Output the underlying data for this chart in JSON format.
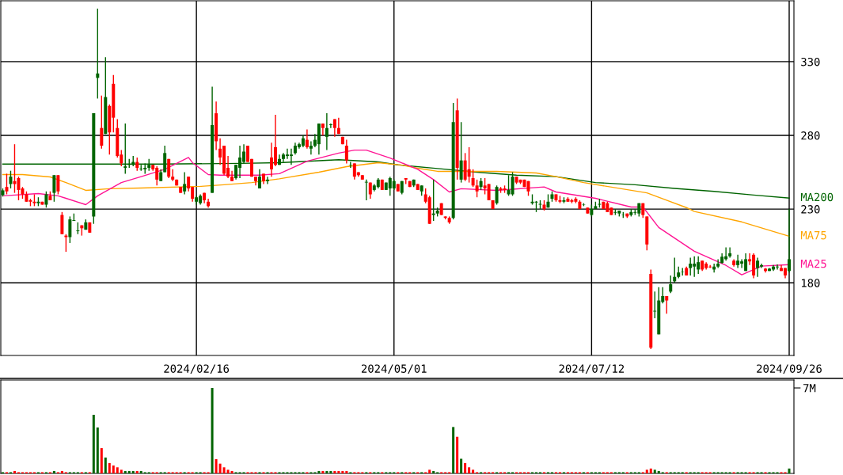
{
  "chart_data": [
    {
      "type": "candlestick",
      "categories": [
        null,
        null,
        null,
        null,
        null,
        null,
        null,
        null,
        null,
        null,
        null,
        null,
        null,
        null,
        null,
        null,
        null,
        null,
        null,
        null,
        null,
        null,
        null,
        null,
        null,
        null,
        null,
        null,
        null,
        null,
        null,
        null,
        null,
        null,
        null,
        null,
        null,
        null,
        null,
        null,
        null,
        null,
        null,
        null,
        null,
        null,
        null,
        null,
        null,
        "2024/02/16",
        null,
        null,
        null,
        null,
        null,
        null,
        null,
        null,
        null,
        null,
        null,
        null,
        null,
        null,
        null,
        null,
        null,
        null,
        null,
        null,
        null,
        null,
        null,
        null,
        null,
        null,
        null,
        null,
        null,
        null,
        null,
        null,
        null,
        null,
        null,
        null,
        null,
        null,
        null,
        null,
        null,
        null,
        null,
        null,
        null,
        null,
        null,
        null,
        null,
        "2024/05/01",
        null,
        null,
        null,
        null,
        null,
        null,
        null,
        null,
        null,
        null,
        null,
        null,
        null,
        null,
        null,
        null,
        null,
        null,
        null,
        null,
        null,
        null,
        null,
        null,
        null,
        null,
        null,
        null,
        null,
        null,
        null,
        null,
        null,
        null,
        null,
        null,
        null,
        null,
        null,
        null,
        null,
        null,
        null,
        null,
        null,
        null,
        null,
        null,
        null,
        "2024/07/12",
        null,
        null,
        null,
        null,
        null,
        null,
        null,
        null,
        null,
        null,
        null,
        null,
        null,
        null,
        null,
        null,
        null,
        null,
        null,
        null,
        null,
        null,
        null,
        null,
        null,
        null,
        null,
        null,
        null,
        null,
        null,
        null,
        null,
        null,
        null,
        null,
        null,
        null,
        null,
        null,
        null,
        null,
        null,
        null,
        null,
        null,
        null,
        null,
        null,
        "2024/09/26"
      ],
      "ohlc": [
        [
          239.5,
          244,
          238.5,
          242.7
        ],
        [
          245,
          254,
          240,
          242
        ],
        [
          247,
          256,
          244,
          252
        ],
        [
          249,
          274,
          241,
          247
        ],
        [
          251,
          252,
          236,
          243
        ],
        [
          244,
          245,
          237,
          240
        ],
        [
          240,
          242,
          235,
          235
        ],
        [
          236,
          237,
          232,
          235
        ],
        [
          235,
          240,
          232,
          234
        ],
        [
          234,
          238,
          232,
          235
        ],
        [
          235,
          235,
          233,
          233
        ],
        [
          233,
          242,
          231,
          240
        ],
        [
          239,
          242,
          236,
          236
        ],
        [
          241,
          253,
          235,
          253
        ],
        [
          253,
          253,
          240,
          242
        ],
        [
          226,
          228,
          213,
          213
        ],
        [
          212,
          213,
          201,
          211
        ],
        [
          211,
          225,
          207,
          223
        ],
        [
          222,
          227,
          222,
          222.5
        ],
        [
          215,
          221,
          213,
          215.5
        ],
        [
          219,
          219,
          212,
          217
        ],
        [
          216,
          223,
          216,
          221
        ],
        [
          221,
          221,
          214,
          214
        ],
        [
          225,
          295,
          220,
          295
        ],
        [
          319,
          366,
          305,
          322
        ],
        [
          285,
          307,
          271,
          273
        ],
        [
          281,
          333,
          281,
          306
        ],
        [
          300,
          301,
          267,
          282
        ],
        [
          315,
          321,
          282,
          292
        ],
        [
          285,
          291,
          265,
          266
        ],
        [
          267,
          270,
          259,
          261
        ],
        [
          258,
          288,
          254,
          259
        ],
        [
          260,
          264,
          258,
          260.5
        ],
        [
          260,
          266,
          259,
          262
        ],
        [
          262,
          265,
          256,
          258
        ],
        [
          257,
          260,
          256,
          257.5
        ],
        [
          257,
          261,
          254,
          258
        ],
        [
          258,
          264,
          256,
          260
        ],
        [
          260,
          260,
          256,
          257
        ],
        [
          258,
          259,
          246,
          250
        ],
        [
          249,
          257,
          249,
          255
        ],
        [
          255,
          273,
          255,
          268
        ],
        [
          264,
          264,
          251,
          252
        ],
        [
          252,
          257,
          249,
          250
        ],
        [
          250,
          250,
          246,
          246
        ],
        [
          245,
          245,
          241,
          241
        ],
        [
          242,
          255,
          240,
          247
        ],
        [
          252,
          252,
          242,
          244
        ],
        [
          245,
          245,
          235,
          237
        ],
        [
          235,
          239,
          233,
          238
        ],
        [
          234,
          240,
          233,
          239
        ],
        [
          241,
          241,
          234,
          236
        ],
        [
          235,
          237,
          231,
          232
        ],
        [
          241,
          313,
          241,
          287
        ],
        [
          295,
          303,
          270,
          276
        ],
        [
          271,
          278,
          260,
          265
        ],
        [
          273,
          273,
          253,
          254
        ],
        [
          258,
          266,
          251,
          252
        ],
        [
          252,
          256,
          249,
          249
        ],
        [
          251,
          260,
          250,
          260
        ],
        [
          258,
          273,
          251,
          265
        ],
        [
          262,
          274,
          261,
          269
        ],
        [
          273,
          273,
          262,
          262
        ],
        [
          264,
          264,
          252,
          252
        ],
        [
          252,
          252,
          246,
          249
        ],
        [
          244,
          257,
          244,
          252
        ],
        [
          254,
          254,
          247,
          249
        ],
        [
          249,
          252,
          247,
          250
        ],
        [
          265,
          275,
          252,
          257
        ],
        [
          272,
          294,
          259,
          260
        ],
        [
          260,
          267,
          260,
          264
        ],
        [
          264,
          268,
          262,
          267
        ],
        [
          266,
          271,
          264,
          267
        ],
        [
          266,
          271,
          260,
          267
        ],
        [
          268,
          275,
          267,
          273
        ],
        [
          272,
          275,
          271,
          274
        ],
        [
          273,
          280,
          272,
          278
        ],
        [
          277,
          284,
          271,
          272
        ],
        [
          271,
          276,
          267,
          273
        ],
        [
          273,
          281,
          272,
          277
        ],
        [
          274,
          288,
          267,
          288
        ],
        [
          288,
          288,
          280,
          285
        ],
        [
          279,
          295,
          270,
          285
        ],
        [
          287,
          288,
          285,
          287.5
        ],
        [
          291,
          291,
          279,
          285
        ],
        [
          285,
          292,
          281,
          281
        ],
        [
          279,
          279,
          274,
          274
        ],
        [
          273,
          277,
          261,
          263
        ],
        [
          259.8,
          262,
          258,
          260
        ],
        [
          261,
          261,
          250,
          252
        ],
        [
          255,
          255,
          252,
          253
        ],
        [
          253,
          253,
          250,
          250
        ],
        [
          248,
          250,
          236,
          248.5
        ],
        [
          248,
          248,
          237,
          240
        ],
        [
          243,
          247,
          242,
          246
        ],
        [
          245,
          251,
          244,
          250
        ],
        [
          250,
          250,
          243,
          243
        ],
        [
          243,
          248,
          243,
          248
        ],
        [
          244,
          252,
          239,
          251
        ],
        [
          244,
          250,
          243,
          249
        ],
        [
          247,
          247,
          242,
          242
        ],
        [
          241,
          249,
          240,
          249
        ],
        [
          251,
          251,
          247,
          250
        ],
        [
          249,
          249,
          245,
          245
        ],
        [
          246,
          250,
          245,
          250
        ],
        [
          247,
          247,
          243,
          243
        ],
        [
          242,
          246,
          239,
          246
        ],
        [
          240,
          244,
          234,
          235
        ],
        [
          238,
          239,
          220,
          220
        ],
        [
          226,
          250,
          222,
          227
        ],
        [
          227,
          231,
          225,
          229
        ],
        [
          234,
          234,
          226,
          226
        ],
        [
          225,
          225,
          223,
          224
        ],
        [
          224,
          225,
          220,
          221
        ],
        [
          224,
          302,
          223,
          289
        ],
        [
          297,
          305,
          250,
          258
        ],
        [
          250,
          289,
          248,
          263
        ],
        [
          263,
          268,
          249,
          250
        ],
        [
          257,
          272,
          248,
          252
        ],
        [
          251,
          257,
          245,
          246
        ],
        [
          246,
          250,
          238,
          242
        ],
        [
          245,
          251,
          243,
          249
        ],
        [
          246,
          251,
          240,
          244
        ],
        [
          247,
          247,
          236,
          236
        ],
        [
          236,
          236,
          230,
          230
        ],
        [
          234,
          246,
          233,
          245
        ],
        [
          244,
          245,
          241,
          243
        ],
        [
          244,
          246,
          241,
          243
        ],
        [
          240,
          253,
          239,
          243
        ],
        [
          240,
          255,
          239,
          252
        ],
        [
          252,
          252,
          247,
          248
        ],
        [
          250,
          250,
          247,
          248
        ],
        [
          250,
          250,
          245,
          245
        ],
        [
          249,
          249,
          239,
          242
        ],
        [
          234,
          240,
          233,
          235
        ],
        [
          234.5,
          235.5,
          228,
          235
        ],
        [
          233,
          236,
          230,
          233.5
        ],
        [
          233,
          236,
          229,
          230
        ],
        [
          231,
          240,
          231,
          235
        ],
        [
          237,
          242,
          235,
          240
        ],
        [
          240,
          240,
          235,
          236
        ],
        [
          236,
          239,
          234,
          235
        ],
        [
          235,
          238,
          234,
          236
        ],
        [
          237,
          238,
          235,
          235
        ],
        [
          236,
          237,
          234,
          235
        ],
        [
          237,
          238,
          234,
          235
        ],
        [
          235,
          236,
          230,
          230
        ],
        [
          232.8,
          234,
          232,
          233
        ],
        [
          231,
          231,
          227,
          227
        ],
        [
          226,
          233,
          225,
          230
        ],
        [
          230,
          235,
          230,
          232
        ],
        [
          233,
          237,
          231,
          233.5
        ],
        [
          235,
          235,
          230,
          230
        ],
        [
          234,
          235,
          228,
          228
        ],
        [
          231,
          231,
          226,
          226
        ],
        [
          227.5,
          230,
          226,
          228
        ],
        [
          227,
          229,
          225,
          229
        ],
        [
          225.8,
          228,
          224,
          226
        ],
        [
          227,
          227,
          224,
          225
        ],
        [
          226,
          230,
          225,
          228
        ],
        [
          227.5,
          230,
          226,
          228
        ],
        [
          227,
          234,
          225,
          234
        ],
        [
          234,
          234,
          224,
          226
        ],
        [
          225,
          225,
          202,
          206
        ],
        [
          186,
          189,
          135,
          136
        ],
        [
          160.5,
          174,
          156,
          161
        ],
        [
          145,
          177,
          145,
          168
        ],
        [
          167,
          177,
          166,
          171
        ],
        [
          171,
          171,
          159,
          168
        ],
        [
          174,
          185,
          173,
          179
        ],
        [
          181,
          197,
          180,
          184
        ],
        [
          184,
          191,
          183,
          187
        ],
        [
          187.3,
          190,
          185,
          187.5
        ],
        [
          190,
          191,
          185,
          185
        ],
        [
          190,
          197,
          185,
          193
        ],
        [
          191,
          198,
          184,
          193
        ],
        [
          189,
          198,
          186,
          194
        ],
        [
          195,
          195,
          188,
          189
        ],
        [
          193,
          194,
          189,
          190
        ],
        [
          191,
          192,
          190,
          190.5
        ],
        [
          189,
          193,
          187,
          191
        ],
        [
          191,
          196,
          190,
          193
        ],
        [
          193.5,
          200,
          193,
          197.7
        ],
        [
          196,
          204,
          195,
          198
        ],
        [
          198,
          204,
          197,
          200
        ],
        [
          195,
          196,
          191,
          192
        ],
        [
          192,
          199,
          190,
          195
        ],
        [
          193,
          196,
          190,
          194.5
        ],
        [
          188,
          200,
          188,
          196
        ],
        [
          196,
          200,
          192,
          194.5
        ],
        [
          199,
          200,
          183,
          185
        ],
        [
          190,
          197,
          184,
          195
        ],
        [
          191,
          193,
          190,
          192
        ],
        [
          189.6,
          190,
          187,
          188
        ],
        [
          188,
          190,
          188,
          189.6
        ],
        [
          189,
          192,
          188,
          191
        ],
        [
          190.5,
          192.5,
          189,
          191
        ],
        [
          190,
          192,
          188,
          188
        ],
        [
          190,
          190,
          183,
          185
        ],
        [
          188,
          230,
          187,
          196
        ]
      ],
      "series": [
        {
          "name": "MA200",
          "type": "line",
          "color": "#006400",
          "values": [
            260.5,
            null,
            null,
            null,
            null,
            null,
            null,
            null,
            null,
            null,
            null,
            null,
            null,
            null,
            null,
            null,
            null,
            null,
            null,
            null,
            260.5,
            null,
            null,
            null,
            null,
            null,
            null,
            null,
            null,
            null,
            null,
            null,
            null,
            null,
            null,
            null,
            null,
            null,
            null,
            null,
            260.5,
            null,
            null,
            null,
            null,
            null,
            null,
            null,
            null,
            null,
            null,
            null,
            null,
            null,
            null,
            null,
            null,
            null,
            null,
            null,
            261,
            null,
            null,
            null,
            null,
            null,
            null,
            null,
            null,
            null,
            261.5,
            null,
            null,
            null,
            null,
            null,
            null,
            null,
            null,
            null,
            null,
            null,
            null,
            null,
            null,
            263.5,
            null,
            null,
            null,
            null,
            null,
            null,
            null,
            null,
            null,
            262,
            null,
            null,
            null,
            null,
            260,
            null,
            null,
            null,
            null,
            null,
            null,
            null,
            null,
            null,
            257.5,
            null,
            null,
            null,
            null,
            null,
            null,
            null,
            null,
            null,
            255,
            null,
            null,
            null,
            null,
            null,
            null,
            null,
            null,
            null,
            253,
            null,
            null,
            null,
            null,
            null,
            null,
            null,
            null,
            null,
            252,
            null,
            null,
            null,
            null,
            null,
            null,
            null,
            null,
            null,
            248,
            null,
            null,
            null,
            null,
            null,
            null,
            null,
            null,
            null,
            246.5,
            null,
            null,
            null,
            null,
            null,
            null,
            null,
            null,
            null,
            244,
            null,
            null,
            null,
            null,
            null,
            null,
            null,
            null,
            null,
            242,
            null,
            null,
            null,
            null,
            null,
            null,
            null,
            null,
            null,
            239.5,
            null,
            null,
            null,
            null,
            null,
            null,
            null,
            null,
            237.5
          ]
        },
        {
          "name": "MA75",
          "type": "line",
          "color": "#ffa500",
          "values": [
            253.4,
            null,
            null,
            null,
            null,
            253.4,
            null,
            null,
            null,
            null,
            null,
            null,
            251.8,
            null,
            null,
            null,
            248,
            null,
            null,
            null,
            null,
            242.7,
            null,
            null,
            null,
            null,
            null,
            243.8,
            null,
            null,
            null,
            null,
            null,
            null,
            null,
            244.3,
            null,
            null,
            null,
            null,
            null,
            null,
            null,
            null,
            null,
            null,
            null,
            null,
            null,
            null,
            245.4,
            null,
            null,
            null,
            null,
            null,
            246.5,
            null,
            null,
            null,
            null,
            null,
            null,
            248,
            null,
            null,
            null,
            null,
            null,
            null,
            250.5,
            null,
            null,
            null,
            null,
            null,
            null,
            null,
            null,
            null,
            255,
            null,
            null,
            null,
            null,
            null,
            null,
            258.8,
            null,
            null,
            null,
            null,
            null,
            null,
            null,
            261.5,
            null,
            null,
            null,
            null,
            null,
            259.8,
            null,
            null,
            null,
            257.7,
            null,
            null,
            null,
            null,
            255.6,
            null,
            null,
            null,
            null,
            null,
            null,
            null,
            null,
            null,
            null,
            null,
            null,
            null,
            null,
            255.6,
            null,
            null,
            null,
            null,
            null,
            null,
            null,
            null,
            null,
            254.5,
            null,
            null,
            null,
            null,
            252,
            null,
            null,
            null,
            null,
            null,
            null,
            248,
            null,
            null,
            null,
            null,
            null,
            null,
            null,
            null,
            null,
            null,
            null,
            null,
            null,
            null,
            null,
            241,
            null,
            null,
            null,
            null,
            null,
            null,
            null,
            null,
            null,
            231,
            null,
            228.4,
            null,
            null,
            null,
            null,
            null,
            null,
            null,
            null,
            null,
            null,
            null,
            221.3,
            null,
            null,
            null,
            null,
            null,
            null,
            null,
            null,
            null,
            null,
            null,
            211.6
          ]
        },
        {
          "name": "MA25",
          "type": "line",
          "color": "#ff1493",
          "values": [
            239,
            null,
            null,
            null,
            null,
            null,
            null,
            null,
            null,
            240.5,
            null,
            null,
            null,
            null,
            239,
            null,
            237.3,
            null,
            null,
            null,
            null,
            233,
            null,
            null,
            239,
            null,
            null,
            null,
            null,
            null,
            248,
            null,
            null,
            null,
            null,
            252,
            null,
            null,
            null,
            null,
            null,
            257,
            null,
            null,
            null,
            null,
            null,
            265,
            261.5,
            null,
            null,
            null,
            253.4,
            null,
            null,
            253,
            null,
            null,
            null,
            null,
            null,
            null,
            null,
            null,
            null,
            253,
            null,
            null,
            null,
            null,
            254,
            null,
            null,
            null,
            null,
            null,
            null,
            262.5,
            null,
            null,
            null,
            null,
            null,
            null,
            null,
            268,
            null,
            null,
            null,
            270,
            null,
            null,
            270,
            null,
            null,
            null,
            null,
            null,
            264.6,
            null,
            null,
            null,
            null,
            null,
            null,
            257,
            null,
            null,
            null,
            250,
            null,
            null,
            null,
            241.6,
            null,
            null,
            243.8,
            null,
            null,
            null,
            null,
            null,
            null,
            null,
            null,
            242.7,
            null,
            null,
            null,
            null,
            null,
            null,
            null,
            null,
            null,
            null,
            null,
            245,
            null,
            null,
            241.6,
            null,
            null,
            null,
            null,
            null,
            null,
            null,
            null,
            null,
            237.3,
            null,
            null,
            null,
            null,
            null,
            null,
            null,
            null,
            231.4,
            null,
            null,
            231.4,
            null,
            null,
            null,
            217.5,
            null,
            null,
            null,
            null,
            null,
            null,
            null,
            null,
            201.4,
            null,
            null,
            null,
            null,
            null,
            null,
            null,
            191.8,
            null,
            null,
            null,
            185.4,
            null,
            null,
            null,
            null,
            191.3,
            null,
            null,
            null,
            null,
            null,
            null,
            192.3
          ]
        }
      ],
      "ylim": [
        130.7,
        371.3
      ],
      "yticks": [
        180,
        230,
        280,
        330
      ],
      "grid": true
    },
    {
      "type": "bar",
      "categories": [
        null,
        null,
        null,
        null,
        null,
        null,
        null,
        null,
        null,
        null,
        null,
        null,
        null,
        null,
        null,
        null,
        null,
        null,
        null,
        null,
        null,
        null,
        null,
        null,
        null,
        null,
        null,
        null,
        null,
        null,
        null,
        null,
        null,
        null,
        null,
        null,
        null,
        null,
        null,
        null,
        null,
        null,
        null,
        null,
        null,
        null,
        null,
        null,
        null,
        null,
        null,
        null,
        null,
        null,
        null,
        null,
        null,
        null,
        null,
        null,
        null,
        null,
        null,
        null,
        null,
        null,
        null,
        null,
        null,
        null,
        null,
        null,
        null,
        null,
        null,
        null,
        null,
        null,
        null,
        null,
        null,
        null,
        null,
        null,
        null,
        null,
        null,
        null,
        null,
        null,
        null,
        null,
        null,
        null,
        null,
        null,
        null,
        null,
        null,
        null,
        null,
        null,
        null,
        null,
        null,
        null,
        null,
        null,
        null,
        null,
        null,
        null,
        null,
        null,
        null,
        null,
        null,
        null,
        null,
        null,
        null,
        null,
        null,
        null,
        null,
        null,
        null,
        null,
        null,
        null,
        null,
        null,
        null,
        null,
        null,
        null,
        null,
        null,
        null,
        null,
        null,
        null,
        null,
        null,
        null,
        null,
        null,
        null,
        null,
        null,
        null,
        null,
        null,
        null,
        null,
        null,
        null,
        null,
        null,
        null,
        null,
        null,
        null,
        null,
        null,
        null,
        null,
        null,
        null,
        null,
        null,
        null,
        null,
        null,
        null,
        null,
        null,
        null,
        null,
        null,
        null,
        null,
        null,
        null,
        null,
        null,
        null,
        null,
        null,
        null,
        null,
        null,
        null,
        null,
        null,
        null,
        null,
        null,
        null,
        null
      ],
      "values": [
        100000,
        100000,
        100000,
        200000,
        100000,
        100000,
        100000,
        100000,
        100000,
        100000,
        100000,
        100000,
        100000,
        200000,
        100000,
        200000,
        100000,
        100000,
        100000,
        100000,
        100000,
        100000,
        100000,
        4800000,
        3760000,
        2070000,
        1300000,
        850000,
        650000,
        500000,
        300000,
        200000,
        200000,
        200000,
        200000,
        200000,
        100000,
        100000,
        100000,
        100000,
        100000,
        100000,
        100000,
        100000,
        100000,
        100000,
        100000,
        100000,
        100000,
        100000,
        100000,
        100000,
        100000,
        7000000,
        1170000,
        800000,
        500000,
        300000,
        200000,
        100000,
        100000,
        100000,
        100000,
        100000,
        100000,
        100000,
        100000,
        100000,
        100000,
        100000,
        100000,
        100000,
        100000,
        100000,
        100000,
        100000,
        100000,
        100000,
        100000,
        100000,
        200000,
        200000,
        200000,
        200000,
        200000,
        200000,
        200000,
        200000,
        100000,
        100000,
        100000,
        100000,
        100000,
        100000,
        100000,
        100000,
        100000,
        100000,
        100000,
        100000,
        100000,
        100000,
        100000,
        100000,
        100000,
        100000,
        100000,
        100000,
        300000,
        200000,
        100000,
        100000,
        100000,
        100000,
        3800000,
        3000000,
        1200000,
        850000,
        500000,
        300000,
        100000,
        100000,
        100000,
        100000,
        100000,
        100000,
        100000,
        100000,
        100000,
        100000,
        100000,
        100000,
        100000,
        100000,
        100000,
        100000,
        100000,
        100000,
        100000,
        100000,
        100000,
        100000,
        100000,
        100000,
        100000,
        100000,
        100000,
        100000,
        100000,
        100000,
        100000,
        100000,
        100000,
        100000,
        100000,
        100000,
        100000,
        100000,
        100000,
        100000,
        100000,
        100000,
        100000,
        300000,
        400000,
        300000,
        200000,
        100000,
        100000,
        100000,
        100000,
        100000,
        100000,
        100000,
        100000,
        100000,
        100000,
        100000,
        100000,
        100000,
        100000,
        100000,
        100000,
        100000,
        100000,
        100000,
        100000,
        100000,
        100000,
        100000,
        100000,
        100000,
        100000,
        100000,
        100000,
        100000,
        100000,
        100000,
        100000,
        400000
      ],
      "ylim": [
        0,
        7650000
      ],
      "yticks": [
        {
          "value": 7000000,
          "label": "7M"
        }
      ],
      "tick_labels": "y",
      "grid": false
    }
  ]
}
